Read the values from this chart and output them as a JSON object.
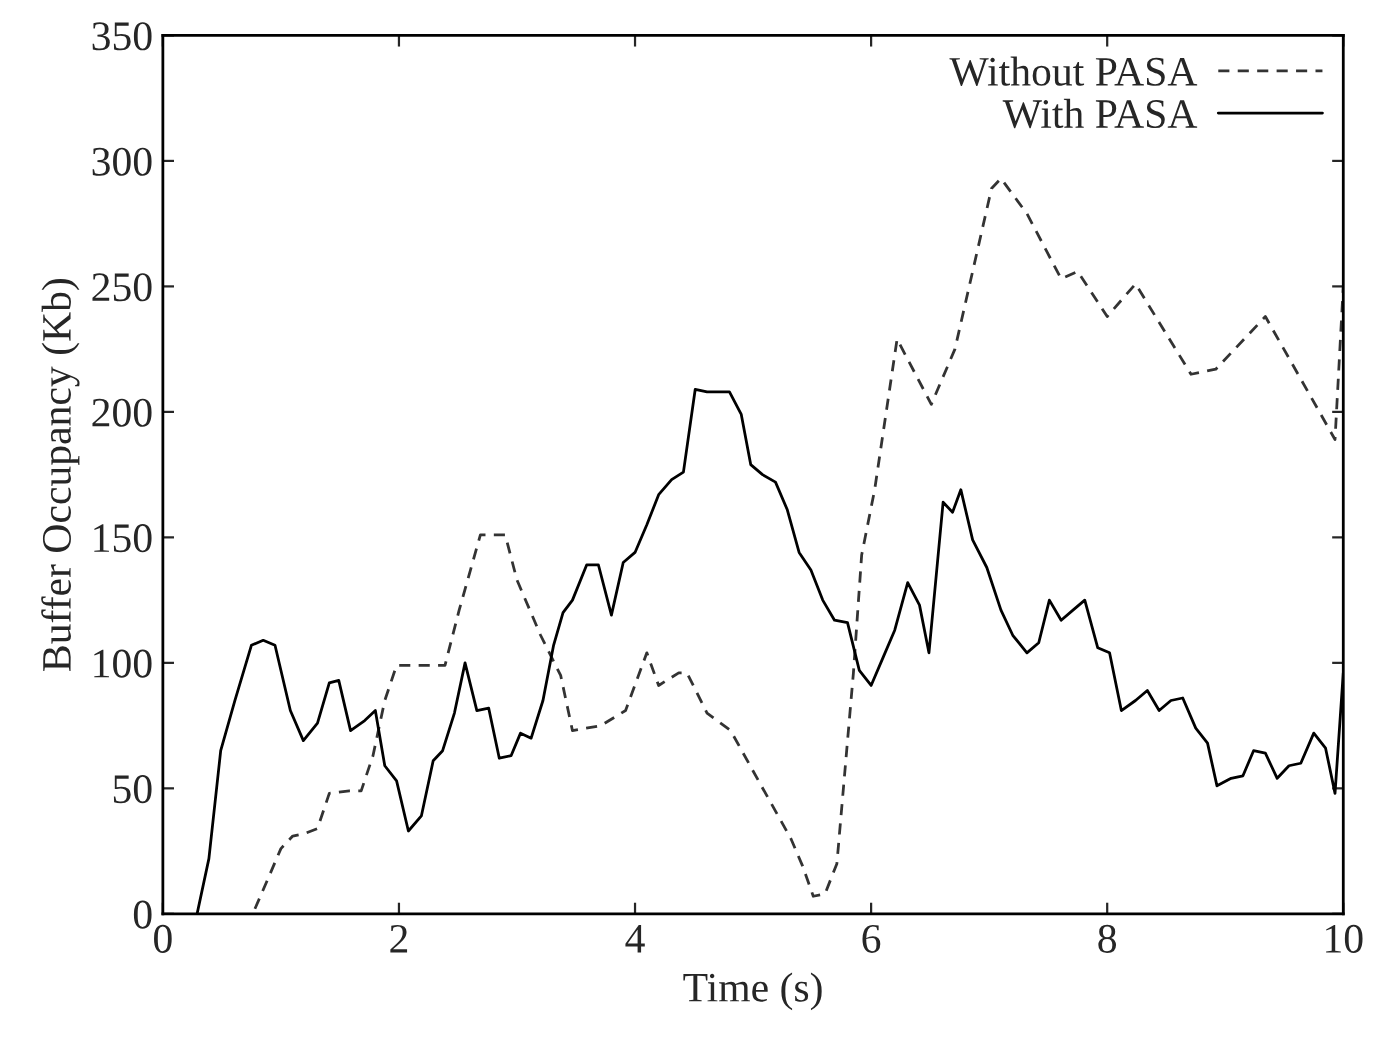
{
  "chart_data": {
    "type": "line",
    "xlabel": "Time (s)",
    "ylabel": "Buffer Occupancy (Kb)",
    "xlim": [
      0,
      10
    ],
    "ylim": [
      0,
      350
    ],
    "xticks": [
      0,
      2,
      4,
      6,
      8,
      10
    ],
    "yticks": [
      0,
      50,
      100,
      150,
      200,
      250,
      300,
      350
    ],
    "grid": false,
    "legend": "top right",
    "marker": "none",
    "series": [
      {
        "name": "Without PASA",
        "color": "#333333",
        "line_style": "dashed",
        "x": [
          0.78,
          0.9,
          1.0,
          1.1,
          1.2,
          1.31,
          1.41,
          1.58,
          1.68,
          1.78,
          1.88,
          1.98,
          2.29,
          2.39,
          2.51,
          2.69,
          2.9,
          3.0,
          3.2,
          3.37,
          3.47,
          3.71,
          3.92,
          4.1,
          4.2,
          4.37,
          4.44,
          4.61,
          4.81,
          5.07,
          5.32,
          5.42,
          5.51,
          5.61,
          5.71,
          5.85,
          5.92,
          6.03,
          6.22,
          6.51,
          6.71,
          7.02,
          7.1,
          7.32,
          7.61,
          7.75,
          8.0,
          8.24,
          8.71,
          8.92,
          9.34,
          9.93,
          10.0
        ],
        "values": [
          2,
          15,
          26,
          31,
          32,
          34,
          48,
          49,
          49,
          63,
          85,
          99,
          99,
          99,
          121,
          151,
          151,
          133,
          111,
          95,
          73,
          75,
          81,
          104,
          91,
          96,
          96,
          80,
          73,
          51,
          30,
          19,
          7,
          8,
          20,
          96,
          143,
          169,
          229,
          203,
          225,
          289,
          293,
          279,
          253,
          256,
          238,
          251,
          215,
          217,
          238,
          189,
          250
        ]
      },
      {
        "name": "With PASA",
        "color": "#000000",
        "line_style": "solid",
        "x": [
          0.29,
          0.39,
          0.49,
          0.61,
          0.75,
          0.85,
          0.95,
          1.08,
          1.19,
          1.31,
          1.41,
          1.49,
          1.59,
          1.71,
          1.8,
          1.88,
          1.98,
          2.08,
          2.19,
          2.29,
          2.37,
          2.47,
          2.56,
          2.66,
          2.76,
          2.85,
          2.95,
          3.03,
          3.12,
          3.22,
          3.31,
          3.39,
          3.47,
          3.59,
          3.69,
          3.8,
          3.9,
          4.0,
          4.1,
          4.2,
          4.31,
          4.41,
          4.51,
          4.61,
          4.8,
          4.9,
          4.98,
          5.08,
          5.19,
          5.29,
          5.39,
          5.49,
          5.59,
          5.69,
          5.8,
          5.9,
          6.0,
          6.1,
          6.2,
          6.31,
          6.41,
          6.49,
          6.61,
          6.69,
          6.76,
          6.86,
          6.98,
          7.1,
          7.2,
          7.32,
          7.42,
          7.51,
          7.61,
          7.71,
          7.81,
          7.92,
          8.02,
          8.12,
          8.24,
          8.34,
          8.44,
          8.54,
          8.64,
          8.75,
          8.85,
          8.93,
          9.05,
          9.15,
          9.24,
          9.34,
          9.44,
          9.54,
          9.64,
          9.75,
          9.85,
          9.93,
          10.0
        ],
        "values": [
          0,
          22,
          65,
          85,
          107,
          109,
          107,
          81,
          69,
          76,
          92,
          93,
          73,
          77,
          81,
          59,
          53,
          33,
          39,
          61,
          65,
          80,
          100,
          81,
          82,
          62,
          63,
          72,
          70,
          85,
          107,
          120,
          125,
          139,
          139,
          119,
          140,
          144,
          155,
          167,
          173,
          176,
          209,
          208,
          208,
          199,
          179,
          175,
          172,
          161,
          144,
          137,
          125,
          117,
          116,
          97,
          91,
          102,
          113,
          132,
          123,
          104,
          164,
          160,
          169,
          149,
          138,
          121,
          111,
          104,
          108,
          125,
          117,
          121,
          125,
          106,
          104,
          81,
          85,
          89,
          81,
          85,
          86,
          74,
          68,
          51,
          54,
          55,
          65,
          64,
          54,
          59,
          60,
          72,
          66,
          48,
          96
        ]
      }
    ]
  }
}
